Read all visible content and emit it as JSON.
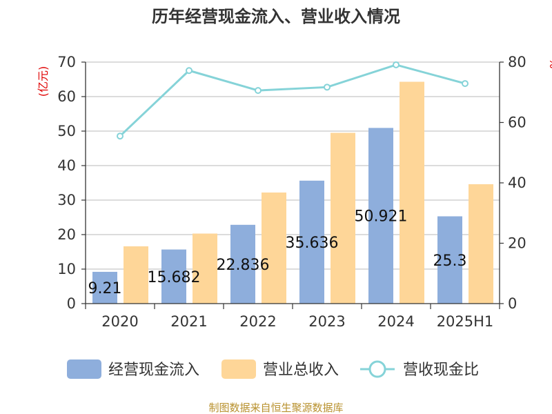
{
  "chart_data": {
    "type": "bar",
    "title": "历年经营现金流入、营业收入情况",
    "left_unit": "(亿元)",
    "right_unit": "%",
    "categories": [
      "2020",
      "2021",
      "2022",
      "2023",
      "2024",
      "2025H1"
    ],
    "ylim": [
      0,
      70
    ],
    "yticks": [
      0,
      10,
      20,
      30,
      40,
      50,
      60,
      70
    ],
    "y2lim": [
      0,
      80
    ],
    "y2ticks": [
      0,
      20,
      40,
      60,
      80
    ],
    "grid": true,
    "legend_position": "bottom",
    "series": [
      {
        "name": "经营现金流入",
        "type": "bar",
        "axis": "left",
        "color": "#8eaedc",
        "values": [
          9.21,
          15.682,
          22.836,
          35.636,
          50.921,
          25.3
        ],
        "labels": [
          "9.21",
          "15.682",
          "22.836",
          "35.636",
          "50.921",
          "25.3"
        ]
      },
      {
        "name": "营业总收入",
        "type": "bar",
        "axis": "left",
        "color": "#fed698",
        "values": [
          16.6,
          20.3,
          32.2,
          49.5,
          64.3,
          34.6
        ]
      },
      {
        "name": "营收现金比",
        "type": "line",
        "axis": "right",
        "color": "#85d3d8",
        "values": [
          55.5,
          77.2,
          70.6,
          71.7,
          79.1,
          72.9
        ]
      }
    ]
  },
  "source": "制图数据来自恒生聚源数据库"
}
